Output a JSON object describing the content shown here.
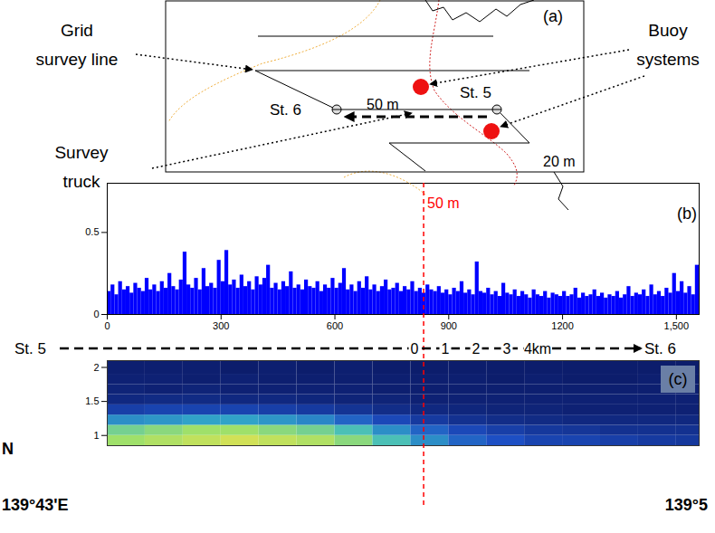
{
  "map": {
    "label": "(a)",
    "grid_survey_line": "Grid survey line",
    "survey_truck": "Survey truck",
    "buoy_systems": "Buoy systems",
    "station_start": "St. 5",
    "station_end": "St. 6",
    "contour_deep": "50 m",
    "contour_shallow": "20 m",
    "north": "N",
    "longitude_left": "139°43'E",
    "longitude_right": "139°5"
  },
  "chart_data": [
    {
      "type": "bar",
      "label": "(b)",
      "color": "#0000ff",
      "x": [
        0,
        10,
        20,
        30,
        40,
        50,
        60,
        70,
        80,
        90,
        100,
        110,
        120,
        130,
        140,
        150,
        160,
        170,
        180,
        190,
        200,
        210,
        220,
        230,
        240,
        250,
        260,
        270,
        280,
        290,
        300,
        310,
        320,
        330,
        340,
        350,
        360,
        370,
        380,
        390,
        400,
        410,
        420,
        430,
        440,
        450,
        460,
        470,
        480,
        490,
        500,
        510,
        520,
        530,
        540,
        550,
        560,
        570,
        580,
        590,
        600,
        610,
        620,
        630,
        640,
        650,
        660,
        670,
        680,
        690,
        700,
        710,
        720,
        730,
        740,
        750,
        760,
        770,
        780,
        790,
        800,
        810,
        820,
        830,
        840,
        850,
        860,
        870,
        880,
        890,
        900,
        910,
        920,
        930,
        940,
        950,
        960,
        970,
        980,
        990,
        1000,
        1010,
        1020,
        1030,
        1040,
        1050,
        1060,
        1070,
        1080,
        1090,
        1100,
        1110,
        1120,
        1130,
        1140,
        1150,
        1160,
        1170,
        1180,
        1190,
        1200,
        1210,
        1220,
        1230,
        1240,
        1250,
        1260,
        1270,
        1280,
        1290,
        1300,
        1310,
        1320,
        1330,
        1340,
        1350,
        1360,
        1370,
        1380,
        1390,
        1400,
        1410,
        1420,
        1430,
        1440,
        1450,
        1460,
        1470,
        1480,
        1490,
        1500,
        1510,
        1520,
        1530,
        1540,
        1550,
        1560
      ],
      "values": [
        0.14,
        0.18,
        0.12,
        0.2,
        0.15,
        0.17,
        0.13,
        0.19,
        0.16,
        0.14,
        0.22,
        0.15,
        0.18,
        0.14,
        0.2,
        0.16,
        0.25,
        0.17,
        0.15,
        0.21,
        0.38,
        0.18,
        0.16,
        0.22,
        0.15,
        0.28,
        0.17,
        0.19,
        0.16,
        0.33,
        0.2,
        0.39,
        0.18,
        0.21,
        0.16,
        0.24,
        0.17,
        0.2,
        0.15,
        0.23,
        0.18,
        0.22,
        0.3,
        0.16,
        0.19,
        0.15,
        0.2,
        0.17,
        0.26,
        0.16,
        0.18,
        0.15,
        0.21,
        0.17,
        0.16,
        0.2,
        0.14,
        0.18,
        0.16,
        0.22,
        0.16,
        0.19,
        0.28,
        0.15,
        0.18,
        0.14,
        0.2,
        0.16,
        0.23,
        0.15,
        0.18,
        0.14,
        0.17,
        0.21,
        0.15,
        0.16,
        0.19,
        0.14,
        0.17,
        0.15,
        0.2,
        0.14,
        0.16,
        0.13,
        0.18,
        0.15,
        0.14,
        0.17,
        0.13,
        0.15,
        0.12,
        0.16,
        0.14,
        0.2,
        0.13,
        0.15,
        0.12,
        0.32,
        0.14,
        0.13,
        0.16,
        0.12,
        0.14,
        0.11,
        0.19,
        0.13,
        0.12,
        0.15,
        0.11,
        0.14,
        0.12,
        0.1,
        0.15,
        0.12,
        0.11,
        0.14,
        0.1,
        0.13,
        0.12,
        0.11,
        0.14,
        0.11,
        0.12,
        0.16,
        0.1,
        0.13,
        0.11,
        0.12,
        0.15,
        0.11,
        0.13,
        0.1,
        0.12,
        0.11,
        0.14,
        0.1,
        0.12,
        0.17,
        0.11,
        0.13,
        0.12,
        0.15,
        0.11,
        0.18,
        0.12,
        0.14,
        0.11,
        0.16,
        0.13,
        0.25,
        0.14,
        0.2,
        0.13,
        0.17,
        0.12,
        0.3,
        0.15
      ],
      "xlim": [
        0,
        1560
      ],
      "ylim": [
        0,
        0.8
      ],
      "xticks": [
        0,
        300,
        600,
        900,
        1200,
        {
          "value": 1500,
          "label": "1,500"
        }
      ],
      "yticks": [
        0,
        0.5
      ],
      "annotation": {
        "text": "50 m",
        "x": 835,
        "color": "#ff0000"
      }
    },
    {
      "type": "heatmap",
      "label": "(c)",
      "tick_labels": "y",
      "x_edges": [
        0,
        100,
        200,
        300,
        400,
        500,
        600,
        700,
        800,
        900,
        1000,
        1100,
        1200,
        1300,
        1400,
        1500,
        1560
      ],
      "y_edges": [
        0.85,
        1.0,
        1.15,
        1.3,
        1.45,
        1.6,
        1.75,
        1.9,
        2.1
      ],
      "cells": [
        [
          0.75,
          0.8,
          0.85,
          0.9,
          0.85,
          0.8,
          0.7,
          0.55,
          0.4,
          0.3,
          0.25,
          0.2,
          0.2,
          0.18,
          0.16,
          0.15
        ],
        [
          0.65,
          0.7,
          0.75,
          0.75,
          0.7,
          0.65,
          0.55,
          0.4,
          0.3,
          0.22,
          0.18,
          0.15,
          0.14,
          0.12,
          0.12,
          0.12
        ],
        [
          0.4,
          0.42,
          0.45,
          0.45,
          0.42,
          0.38,
          0.3,
          0.22,
          0.16,
          0.12,
          0.1,
          0.09,
          0.08,
          0.08,
          0.08,
          0.08
        ],
        [
          0.18,
          0.2,
          0.2,
          0.2,
          0.18,
          0.16,
          0.13,
          0.1,
          0.08,
          0.07,
          0.06,
          0.06,
          0.05,
          0.05,
          0.05,
          0.05
        ],
        [
          0.08,
          0.09,
          0.09,
          0.08,
          0.08,
          0.07,
          0.06,
          0.06,
          0.05,
          0.05,
          0.05,
          0.05,
          0.05,
          0.05,
          0.05,
          0.05
        ],
        [
          0.06,
          0.05,
          0.06,
          0.05,
          0.05,
          0.05,
          0.05,
          0.04,
          0.04,
          0.04,
          0.04,
          0.04,
          0.04,
          0.04,
          0.04,
          0.04
        ],
        [
          0.05,
          0.05,
          0.04,
          0.05,
          0.04,
          0.04,
          0.04,
          0.04,
          0.04,
          0.04,
          0.03,
          0.04,
          0.03,
          0.03,
          0.04,
          0.03
        ],
        [
          0.04,
          0.04,
          0.04,
          0.03,
          0.04,
          0.03,
          0.04,
          0.03,
          0.03,
          0.03,
          0.03,
          0.03,
          0.03,
          0.03,
          0.03,
          0.03
        ]
      ],
      "cell_range": [
        0,
        1
      ],
      "xlim": [
        0,
        1560
      ],
      "ylim": [
        0.85,
        2.1
      ],
      "yticks": [
        1,
        1.5,
        2
      ]
    }
  ],
  "distance_bar": {
    "start": "St. 5",
    "end": "St. 6",
    "ticks": [
      0,
      1,
      2,
      3,
      {
        "value": 4,
        "label": "4km"
      }
    ]
  }
}
